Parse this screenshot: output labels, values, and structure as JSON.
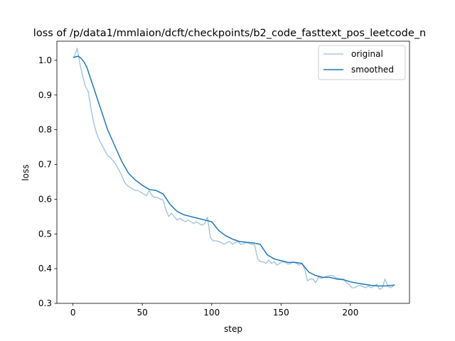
{
  "chart_data": {
    "type": "line",
    "title": "loss of /p/data1/mmlaion/dcft/checkpoints/b2_code_fasttext_pos_leetcode_n",
    "xlabel": "step",
    "ylabel": "loss",
    "xlim": [
      -11.6,
      242.6
    ],
    "ylim": [
      0.3,
      1.055
    ],
    "xticks": [
      0,
      50,
      100,
      150,
      200
    ],
    "yticks": [
      0.3,
      0.4,
      0.5,
      0.6,
      0.7,
      0.8,
      0.9,
      1.0
    ],
    "ytick_labels": [
      "0.3",
      "0.4",
      "0.5",
      "0.6",
      "0.7",
      "0.8",
      "0.9",
      "1.0"
    ],
    "grid": false,
    "legend_position": "top-right",
    "series": [
      {
        "name": "original",
        "color": "#a6c8e1",
        "x": [
          1,
          3,
          5,
          7,
          9,
          11,
          13,
          15,
          17,
          19,
          21,
          23,
          25,
          27,
          29,
          31,
          33,
          35,
          37,
          39,
          41,
          43,
          45,
          47,
          49,
          51,
          53,
          55,
          57,
          59,
          61,
          63,
          65,
          67,
          69,
          71,
          73,
          75,
          77,
          79,
          81,
          83,
          85,
          87,
          89,
          91,
          93,
          95,
          97,
          99,
          101,
          103,
          105,
          107,
          109,
          111,
          113,
          115,
          117,
          119,
          121,
          123,
          125,
          127,
          129,
          131,
          133,
          135,
          137,
          139,
          141,
          143,
          145,
          147,
          149,
          151,
          153,
          155,
          157,
          159,
          161,
          163,
          165,
          167,
          169,
          171,
          173,
          175,
          177,
          179,
          181,
          183,
          185,
          187,
          189,
          191,
          193,
          195,
          197,
          199,
          201,
          203,
          205,
          207,
          209,
          211,
          213,
          215,
          217,
          219,
          221,
          223,
          225,
          227,
          229,
          231
        ],
        "values": [
          1.01,
          1.035,
          0.99,
          0.955,
          0.925,
          0.91,
          0.86,
          0.82,
          0.79,
          0.77,
          0.755,
          0.74,
          0.725,
          0.72,
          0.71,
          0.7,
          0.685,
          0.67,
          0.65,
          0.64,
          0.635,
          0.63,
          0.625,
          0.625,
          0.62,
          0.615,
          0.61,
          0.625,
          0.61,
          0.605,
          0.605,
          0.6,
          0.598,
          0.57,
          0.55,
          0.56,
          0.55,
          0.54,
          0.545,
          0.54,
          0.535,
          0.54,
          0.535,
          0.53,
          0.535,
          0.53,
          0.525,
          0.53,
          0.548,
          0.49,
          0.48,
          0.48,
          0.478,
          0.475,
          0.47,
          0.475,
          0.478,
          0.47,
          0.475,
          0.478,
          0.47,
          0.472,
          0.475,
          0.472,
          0.47,
          0.468,
          0.43,
          0.42,
          0.42,
          0.415,
          0.425,
          0.415,
          0.42,
          0.41,
          0.415,
          0.42,
          0.418,
          0.413,
          0.415,
          0.42,
          0.415,
          0.41,
          0.415,
          0.4,
          0.365,
          0.37,
          0.37,
          0.36,
          0.375,
          0.372,
          0.375,
          0.378,
          0.38,
          0.38,
          0.375,
          0.372,
          0.37,
          0.37,
          0.36,
          0.355,
          0.345,
          0.345,
          0.35,
          0.352,
          0.348,
          0.345,
          0.35,
          0.345,
          0.35,
          0.355,
          0.34,
          0.345,
          0.37,
          0.35,
          0.345,
          0.35
        ]
      },
      {
        "name": "smoothed",
        "color": "#1f77b4",
        "x": [
          0,
          2,
          4,
          6,
          8,
          10,
          15,
          20,
          25,
          30,
          35,
          40,
          45,
          50,
          55,
          60,
          65,
          70,
          75,
          80,
          85,
          90,
          95,
          100,
          105,
          110,
          115,
          120,
          125,
          130,
          135,
          140,
          145,
          150,
          155,
          160,
          165,
          170,
          175,
          180,
          185,
          190,
          195,
          200,
          205,
          210,
          215,
          220,
          225,
          230,
          232
        ],
        "values": [
          1.008,
          1.01,
          1.012,
          1.005,
          0.995,
          0.98,
          0.92,
          0.86,
          0.8,
          0.755,
          0.71,
          0.675,
          0.655,
          0.64,
          0.628,
          0.625,
          0.615,
          0.585,
          0.565,
          0.555,
          0.55,
          0.545,
          0.54,
          0.535,
          0.51,
          0.495,
          0.485,
          0.478,
          0.476,
          0.474,
          0.47,
          0.44,
          0.428,
          0.423,
          0.418,
          0.418,
          0.415,
          0.39,
          0.38,
          0.375,
          0.375,
          0.37,
          0.368,
          0.362,
          0.358,
          0.355,
          0.352,
          0.35,
          0.35,
          0.352,
          0.353
        ]
      }
    ]
  }
}
